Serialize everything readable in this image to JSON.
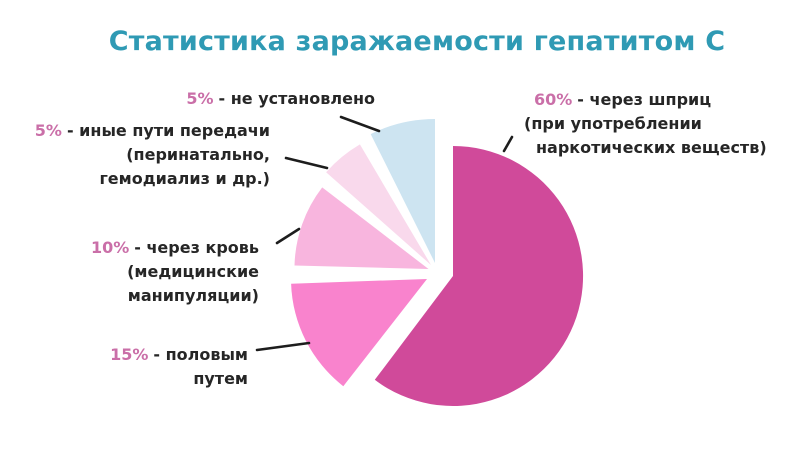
{
  "title": "Статистика заражаемости гепатитом С",
  "colors": {
    "background": "#ffffff",
    "title": "#2f9ab4",
    "pct": "#ca6fa8",
    "text": "#262626",
    "leader_line": "#1d1d1d"
  },
  "chart_data": {
    "type": "pie",
    "title": "Статистика заражаемости гепатитом С",
    "unit": "%",
    "legend_position": "callout-labels-around-pie",
    "values_sum_note": "labeled percentages: 60+15+10+5+5",
    "slices": [
      {
        "id": "syringe",
        "value": 60,
        "label": "через шприц (при употреблении наркотических веществ)",
        "color": "#d04a9a",
        "start_angle": 0,
        "end_angle": 217,
        "radius": 130,
        "offset": [
          16,
          4
        ]
      },
      {
        "id": "sexual",
        "value": 15,
        "label": "половым путем",
        "color": "#f983cd",
        "start_angle": 218,
        "end_angle": 268,
        "radius": 136,
        "offset": [
          -10,
          7
        ]
      },
      {
        "id": "blood",
        "value": 10,
        "label": "через кровь (медицинские манипуляции)",
        "color": "#f8b5de",
        "start_angle": 271.5,
        "end_angle": 307.5,
        "radius": 134,
        "offset": [
          -8.5,
          -3
        ]
      },
      {
        "id": "other",
        "value": 5,
        "label": "иные пути передачи (перинатально, гемодиализ и др.)",
        "color": "#f9d9ec",
        "start_angle": 311.5,
        "end_angle": 329.5,
        "radius": 140,
        "offset": [
          -6,
          -7
        ]
      },
      {
        "id": "unknown",
        "value": 5,
        "label": "не установлено",
        "color": "#cde4f1",
        "start_angle": 333.5,
        "end_angle": 360,
        "radius": 144,
        "offset": [
          -2,
          -9
        ]
      }
    ]
  },
  "callouts": [
    {
      "pct": "5%",
      "rest": "- не установлено",
      "lines": []
    },
    {
      "pct": "5%",
      "rest": "- иные пути передачи",
      "lines": [
        "(перинатально,",
        "гемодиализ и др.)"
      ]
    },
    {
      "pct": "10%",
      "rest": "- через кровь",
      "lines": [
        "(медицинские",
        "манипуляции)"
      ]
    },
    {
      "pct": "15%",
      "rest": "- половым",
      "lines": [
        "путем"
      ]
    },
    {
      "pct": "60%",
      "rest": "- через шприц",
      "lines": [
        "(при употреблении",
        "наркотических веществ)"
      ]
    }
  ]
}
